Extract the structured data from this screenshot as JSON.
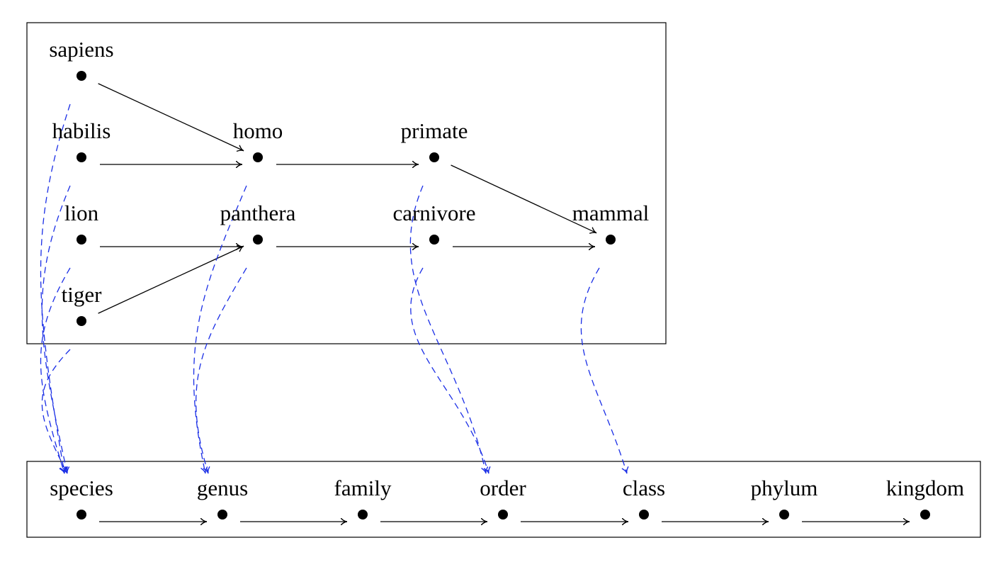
{
  "top_nodes": [
    {
      "label": "sapiens"
    },
    {
      "label": "habilis"
    },
    {
      "label": "homo"
    },
    {
      "label": "primate"
    },
    {
      "label": "lion"
    },
    {
      "label": "panthera"
    },
    {
      "label": "carnivore"
    },
    {
      "label": "mammal"
    },
    {
      "label": "tiger"
    }
  ],
  "bottom_nodes": [
    {
      "label": "species"
    },
    {
      "label": "genus"
    },
    {
      "label": "family"
    },
    {
      "label": "order"
    },
    {
      "label": "class"
    },
    {
      "label": "phylum"
    },
    {
      "label": "kingdom"
    }
  ]
}
